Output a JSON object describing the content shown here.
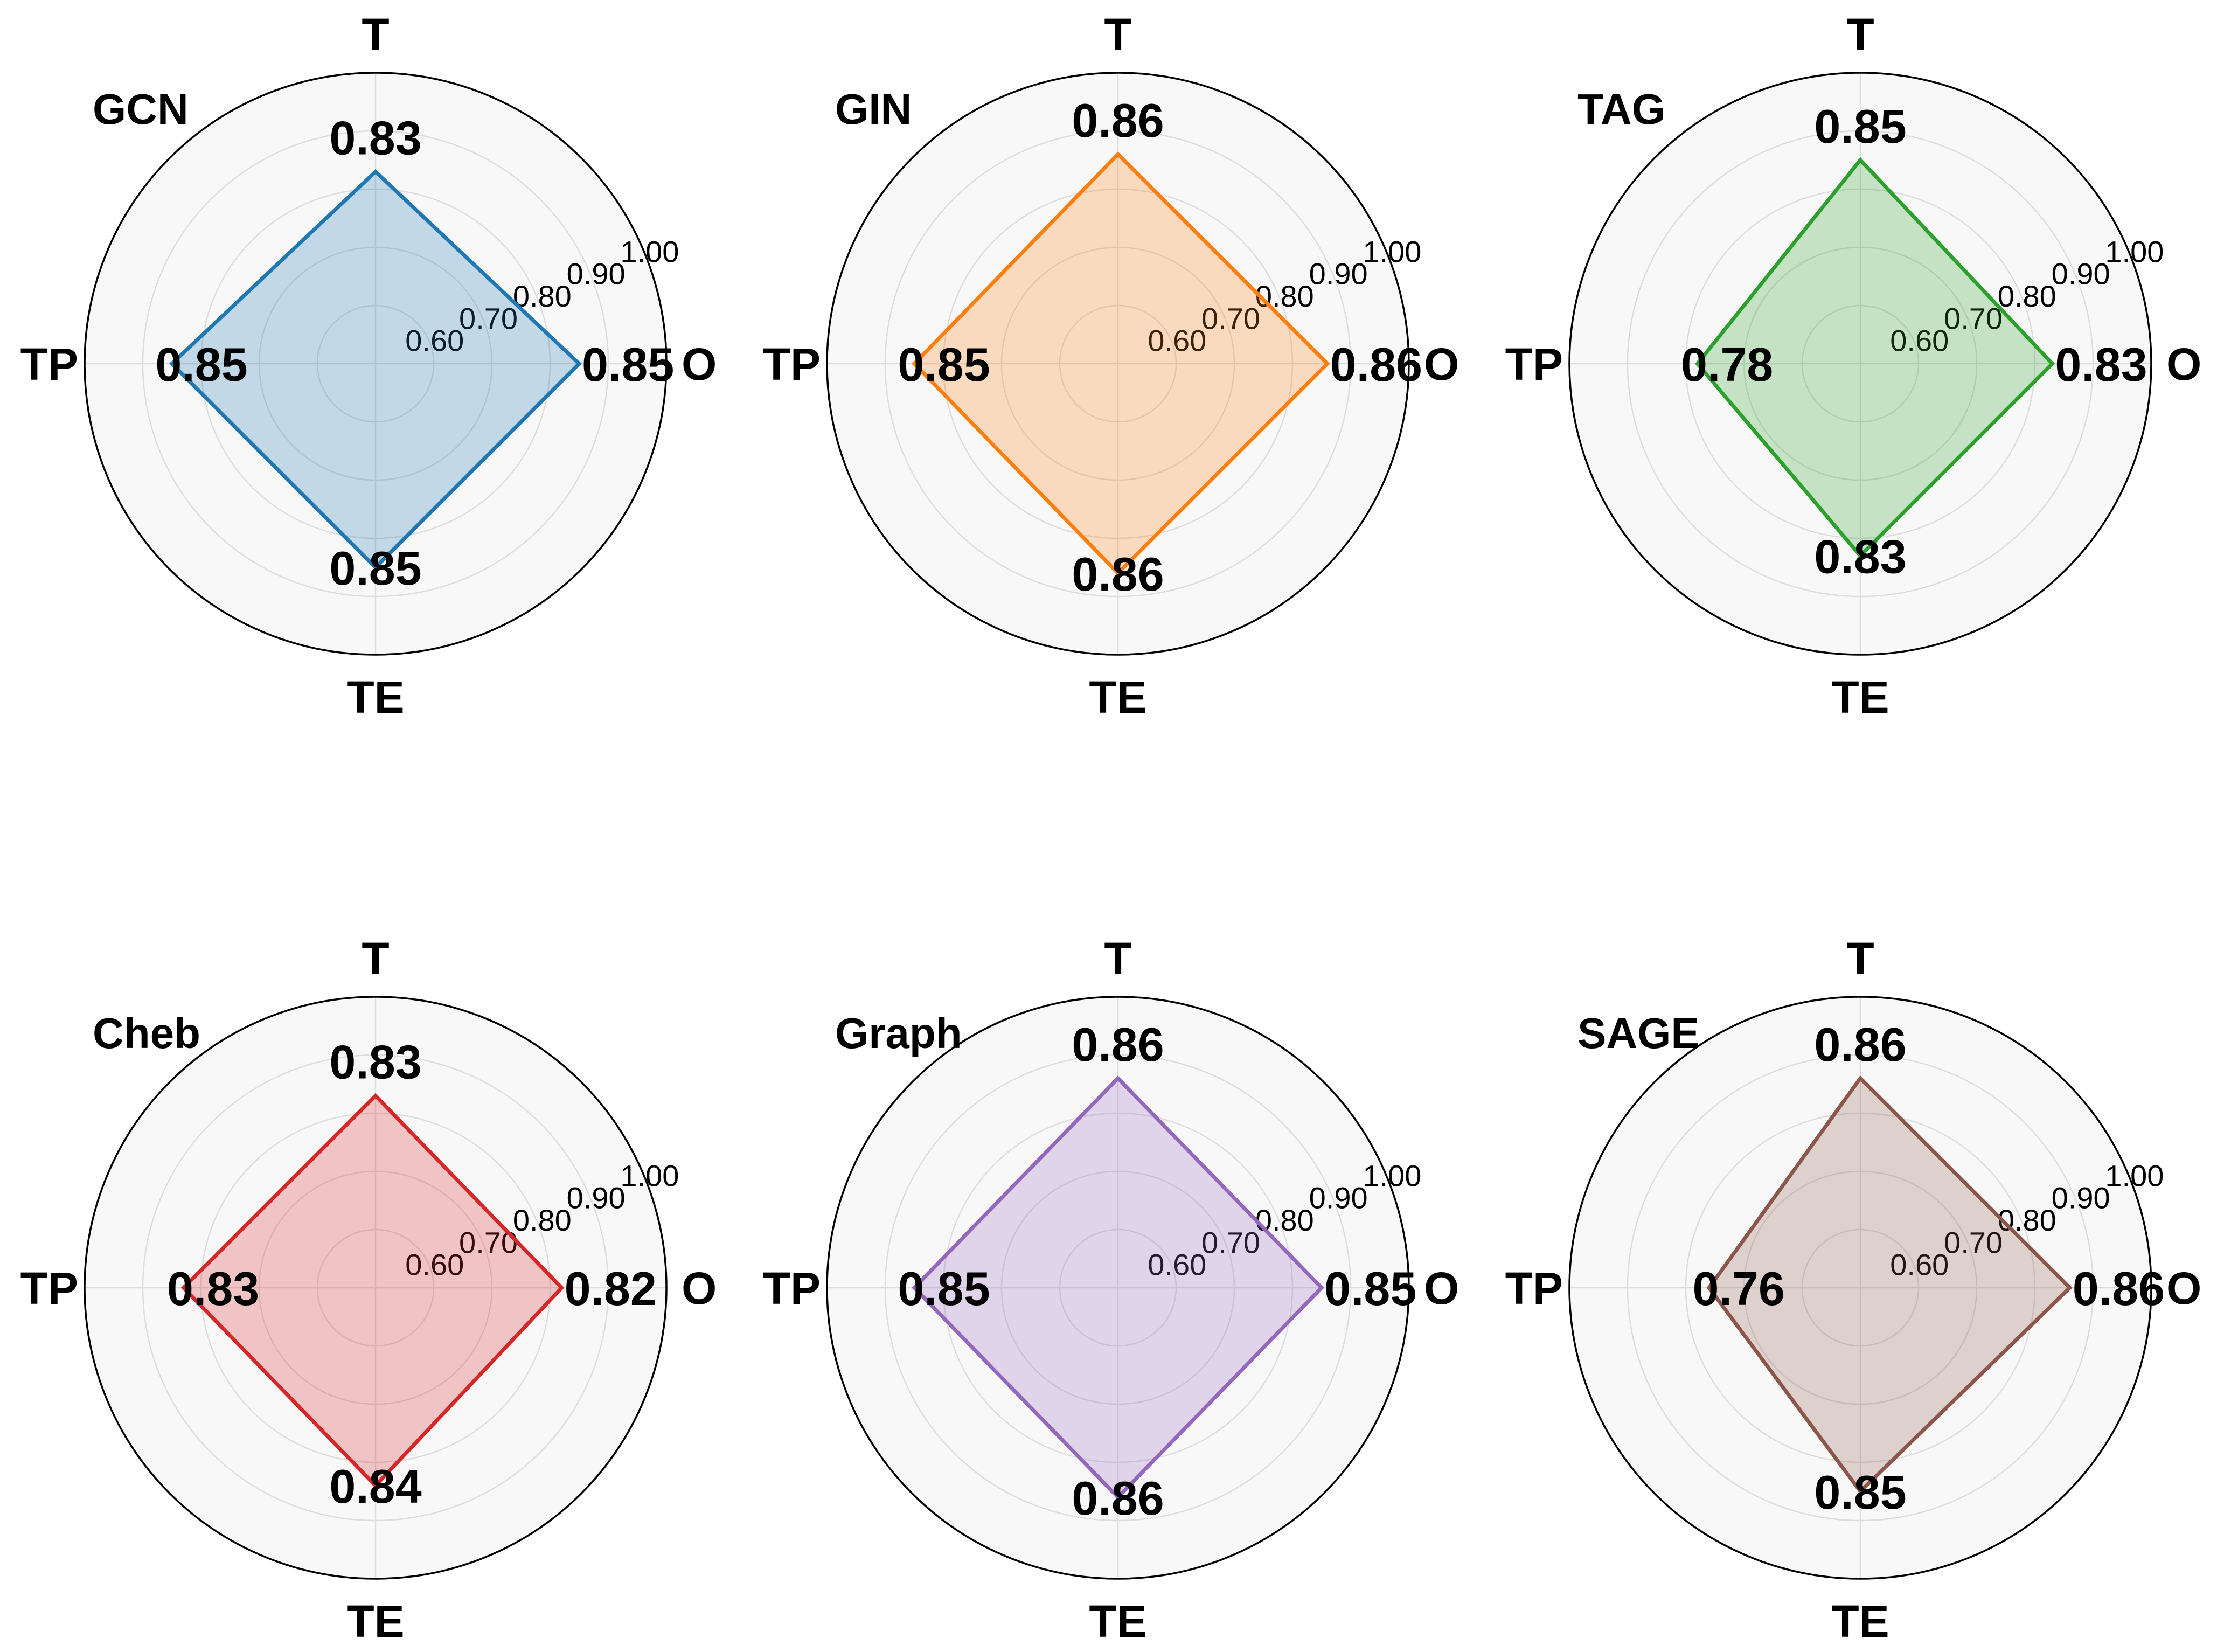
{
  "chart_data": [
    {
      "type": "radar",
      "title": "GCN",
      "axes": [
        "O",
        "T",
        "TP",
        "TE"
      ],
      "values": [
        0.85,
        0.83,
        0.85,
        0.85
      ],
      "value_labels": [
        "0.85",
        "0.83",
        "0.85",
        "0.85"
      ],
      "rlim": [
        0.5,
        1.0
      ],
      "rticks": [
        0.6,
        0.7,
        0.8,
        0.9,
        1.0
      ],
      "rtick_labels": [
        "0.60",
        "0.70",
        "0.80",
        "0.90",
        "1.00"
      ],
      "color": "#1f77b4"
    },
    {
      "type": "radar",
      "title": "GIN",
      "axes": [
        "O",
        "T",
        "TP",
        "TE"
      ],
      "values": [
        0.86,
        0.86,
        0.85,
        0.86
      ],
      "value_labels": [
        "0.86",
        "0.86",
        "0.85",
        "0.86"
      ],
      "rlim": [
        0.5,
        1.0
      ],
      "rticks": [
        0.6,
        0.7,
        0.8,
        0.9,
        1.0
      ],
      "rtick_labels": [
        "0.60",
        "0.70",
        "0.80",
        "0.90",
        "1.00"
      ],
      "color": "#ff7f0e"
    },
    {
      "type": "radar",
      "title": "TAG",
      "axes": [
        "O",
        "T",
        "TP",
        "TE"
      ],
      "values": [
        0.83,
        0.85,
        0.78,
        0.83
      ],
      "value_labels": [
        "0.83",
        "0.85",
        "0.78",
        "0.83"
      ],
      "rlim": [
        0.5,
        1.0
      ],
      "rticks": [
        0.6,
        0.7,
        0.8,
        0.9,
        1.0
      ],
      "rtick_labels": [
        "0.60",
        "0.70",
        "0.80",
        "0.90",
        "1.00"
      ],
      "color": "#2ca02c"
    },
    {
      "type": "radar",
      "title": "Cheb",
      "axes": [
        "O",
        "T",
        "TP",
        "TE"
      ],
      "values": [
        0.82,
        0.83,
        0.83,
        0.84
      ],
      "value_labels": [
        "0.82",
        "0.83",
        "0.83",
        "0.84"
      ],
      "rlim": [
        0.5,
        1.0
      ],
      "rticks": [
        0.6,
        0.7,
        0.8,
        0.9,
        1.0
      ],
      "rtick_labels": [
        "0.60",
        "0.70",
        "0.80",
        "0.90",
        "1.00"
      ],
      "color": "#d62728"
    },
    {
      "type": "radar",
      "title": "Graph",
      "axes": [
        "O",
        "T",
        "TP",
        "TE"
      ],
      "values": [
        0.85,
        0.86,
        0.85,
        0.86
      ],
      "value_labels": [
        "0.85",
        "0.86",
        "0.85",
        "0.86"
      ],
      "rlim": [
        0.5,
        1.0
      ],
      "rticks": [
        0.6,
        0.7,
        0.8,
        0.9,
        1.0
      ],
      "rtick_labels": [
        "0.60",
        "0.70",
        "0.80",
        "0.90",
        "1.00"
      ],
      "color": "#9467bd"
    },
    {
      "type": "radar",
      "title": "SAGE",
      "axes": [
        "O",
        "T",
        "TP",
        "TE"
      ],
      "values": [
        0.86,
        0.86,
        0.76,
        0.85
      ],
      "value_labels": [
        "0.86",
        "0.86",
        "0.76",
        "0.85"
      ],
      "rlim": [
        0.5,
        1.0
      ],
      "rticks": [
        0.6,
        0.7,
        0.8,
        0.9,
        1.0
      ],
      "rtick_labels": [
        "0.60",
        "0.70",
        "0.80",
        "0.90",
        "1.00"
      ],
      "color": "#8c564b"
    }
  ]
}
